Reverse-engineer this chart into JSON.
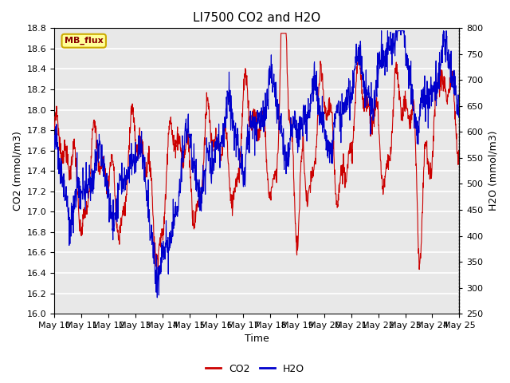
{
  "title": "LI7500 CO2 and H2O",
  "xlabel": "Time",
  "ylabel_left": "CO2 (mmol/m3)",
  "ylabel_right": "H2O (mmol/m3)",
  "co2_ylim": [
    16.0,
    18.8
  ],
  "h2o_ylim": [
    250,
    800
  ],
  "co2_yticks": [
    16.0,
    16.2,
    16.4,
    16.6,
    16.8,
    17.0,
    17.2,
    17.4,
    17.6,
    17.8,
    18.0,
    18.2,
    18.4,
    18.6,
    18.8
  ],
  "h2o_yticks": [
    250,
    300,
    350,
    400,
    450,
    500,
    550,
    600,
    650,
    700,
    750,
    800
  ],
  "xtick_labels": [
    "May 10",
    "May 11",
    "May 12",
    "May 13",
    "May 14",
    "May 15",
    "May 16",
    "May 17",
    "May 18",
    "May 19",
    "May 20",
    "May 21",
    "May 22",
    "May 23",
    "May 24",
    "May 25"
  ],
  "co2_color": "#CC0000",
  "h2o_color": "#0000CC",
  "background_color": "#E8E8E8",
  "grid_color": "#FFFFFF",
  "annotation_text": "MB_flux",
  "annotation_bg": "#FFFF99",
  "annotation_border": "#CCAA00",
  "title_fontsize": 11,
  "axis_label_fontsize": 9,
  "tick_fontsize": 8,
  "legend_fontsize": 9
}
